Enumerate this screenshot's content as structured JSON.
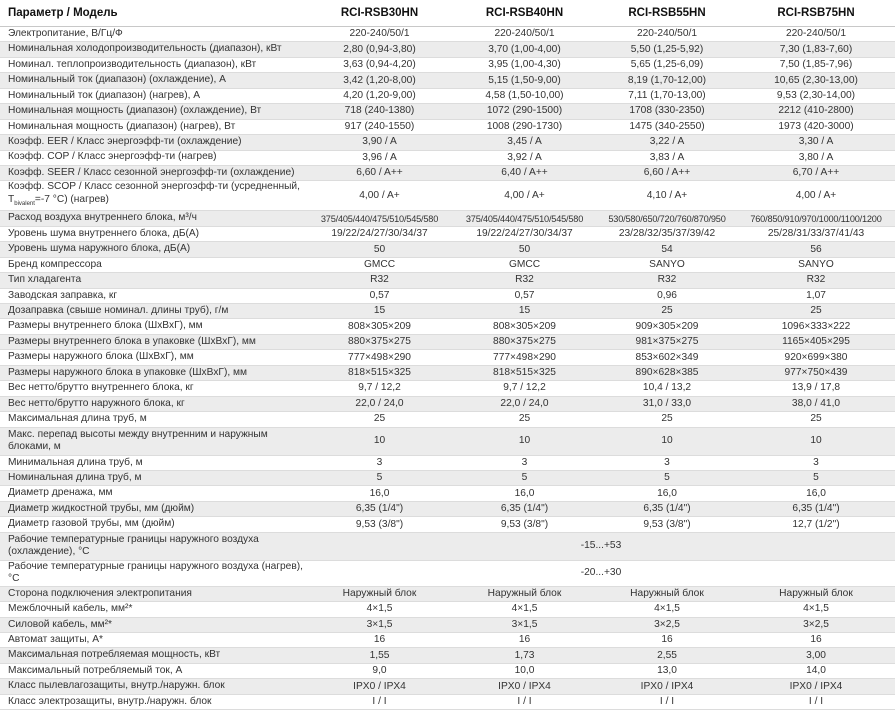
{
  "header": {
    "param": "Параметр / Модель",
    "models": [
      "RCI-RSB30HN",
      "RCI-RSB40HN",
      "RCI-RSB55HN",
      "RCI-RSB75HN"
    ]
  },
  "rows": [
    {
      "label": "Электропитание, В/Гц/Ф",
      "values": [
        "220-240/50/1",
        "220-240/50/1",
        "220-240/50/1",
        "220-240/50/1"
      ]
    },
    {
      "label": "Номинальная холодопроизводительность (диапазон), кВт",
      "values": [
        "2,80 (0,94-3,80)",
        "3,70 (1,00-4,00)",
        "5,50 (1,25-5,92)",
        "7,30 (1,83-7,60)"
      ]
    },
    {
      "label": "Номинал. теплопроизводительность (диапазон), кВт",
      "values": [
        "3,63 (0,94-4,20)",
        "3,95 (1,00-4,30)",
        "5,65 (1,25-6,09)",
        "7,50 (1,85-7,96)"
      ]
    },
    {
      "label": "Номинальный ток (диапазон) (охлаждение), А",
      "values": [
        "3,42 (1,20-8,00)",
        "5,15 (1,50-9,00)",
        "8,19 (1,70-12,00)",
        "10,65 (2,30-13,00)"
      ]
    },
    {
      "label": "Номинальный ток (диапазон) (нагрев), А",
      "values": [
        "4,20 (1,20-9,00)",
        "4,58 (1,50-10,00)",
        "7,11 (1,70-13,00)",
        "9,53 (2,30-14,00)"
      ]
    },
    {
      "label": "Номинальная мощность (диапазон) (охлаждение), Вт",
      "values": [
        "718 (240-1380)",
        "1072 (290-1500)",
        "1708 (330-2350)",
        "2212 (410-2800)"
      ]
    },
    {
      "label": "Номинальная мощность (диапазон) (нагрев), Вт",
      "values": [
        "917 (240-1550)",
        "1008 (290-1730)",
        "1475 (340-2550)",
        "1973 (420-3000)"
      ]
    },
    {
      "label": "Коэфф. EER / Класс энергоэфф-ти (охлаждение)",
      "values": [
        "3,90 / A",
        "3,45 / A",
        "3,22 / A",
        "3,30 / A"
      ]
    },
    {
      "label": "Коэфф. COP / Класс энергоэфф-ти (нагрев)",
      "values": [
        "3,96 / A",
        "3,92 / A",
        "3,83 / A",
        "3,80 / A"
      ]
    },
    {
      "label": "Коэфф. SEER / Класс сезонной энергоэфф-ти (охлаждение)",
      "values": [
        "6,60 / A++",
        "6,40 / A++",
        "6,60 / A++",
        "6,70 / A++"
      ]
    },
    {
      "label": "Коэфф. SCOP / Класс сезонной энергоэфф-ти (усредненный, T",
      "label_sub": "bivalent",
      "label_end": "=-7 °С) (нагрев)",
      "tall": true,
      "values": [
        "4,00 / A+",
        "4,00 / A+",
        "4,10 / A+",
        "4,00 / A+"
      ]
    },
    {
      "label": "Расход воздуха внутреннего блока, м³/ч",
      "narrow": true,
      "values": [
        "375/405/440/475/510/545/580",
        "375/405/440/475/510/545/580",
        "530/580/650/720/760/870/950",
        "760/850/910/970/1000/1100/1200"
      ]
    },
    {
      "label": "Уровень шума внутреннего блока, дБ(А)",
      "values": [
        "19/22/24/27/30/34/37",
        "19/22/24/27/30/34/37",
        "23/28/32/35/37/39/42",
        "25/28/31/33/37/41/43"
      ]
    },
    {
      "label": "Уровень шума наружного блока, дБ(А)",
      "values": [
        "50",
        "50",
        "54",
        "56"
      ]
    },
    {
      "label": "Бренд компрессора",
      "values": [
        "GMCC",
        "GMCC",
        "SANYO",
        "SANYO"
      ]
    },
    {
      "label": "Тип хладагента",
      "values": [
        "R32",
        "R32",
        "R32",
        "R32"
      ]
    },
    {
      "label": "Заводская заправка, кг",
      "values": [
        "0,57",
        "0,57",
        "0,96",
        "1,07"
      ]
    },
    {
      "label": "Дозаправка (свыше номинал. длины труб), г/м",
      "values": [
        "15",
        "15",
        "25",
        "25"
      ]
    },
    {
      "label": "Размеры внутреннего блока (ШхВхГ), мм",
      "values": [
        "808×305×209",
        "808×305×209",
        "909×305×209",
        "1096×333×222"
      ]
    },
    {
      "label": "Размеры внутреннего блока в упаковке (ШхВхГ), мм",
      "values": [
        "880×375×275",
        "880×375×275",
        "981×375×275",
        "1165×405×295"
      ]
    },
    {
      "label": "Размеры наружного блока (ШхВхГ), мм",
      "values": [
        "777×498×290",
        "777×498×290",
        "853×602×349",
        "920×699×380"
      ]
    },
    {
      "label": "Размеры наружного блока в упаковке (ШхВхГ), мм",
      "values": [
        "818×515×325",
        "818×515×325",
        "890×628×385",
        "977×750×439"
      ]
    },
    {
      "label": "Вес нетто/брутто внутреннего блока, кг",
      "values": [
        "9,7 / 12,2",
        "9,7 / 12,2",
        "10,4 / 13,2",
        "13,9 / 17,8"
      ]
    },
    {
      "label": "Вес нетто/брутто наружного блока, кг",
      "values": [
        "22,0 / 24,0",
        "22,0 / 24,0",
        "31,0 / 33,0",
        "38,0 / 41,0"
      ]
    },
    {
      "label": "Максимальная длина труб, м",
      "values": [
        "25",
        "25",
        "25",
        "25"
      ]
    },
    {
      "label": "Макс. перепад высоты между внутренним и наружным блоками, м",
      "tall": true,
      "values": [
        "10",
        "10",
        "10",
        "10"
      ]
    },
    {
      "label": "Минимальная длина труб, м",
      "values": [
        "3",
        "3",
        "3",
        "3"
      ]
    },
    {
      "label": "Номинальная длина труб, м",
      "values": [
        "5",
        "5",
        "5",
        "5"
      ]
    },
    {
      "label": "Диаметр дренажа, мм",
      "values": [
        "16,0",
        "16,0",
        "16,0",
        "16,0"
      ]
    },
    {
      "label": "Диаметр жидкостной трубы, мм (дюйм)",
      "values": [
        "6,35 (1/4\")",
        "6,35 (1/4\")",
        "6,35 (1/4\")",
        "6,35 (1/4\")"
      ]
    },
    {
      "label": "Диаметр газовой трубы, мм (дюйм)",
      "values": [
        "9,53 (3/8\")",
        "9,53 (3/8\")",
        "9,53 (3/8\")",
        "12,7 (1/2\")"
      ]
    },
    {
      "label": "Рабочие температурные границы наружного воздуха (охлаждение), °С",
      "tall": true,
      "span": "-15...+53"
    },
    {
      "label": "Рабочие температурные границы наружного воздуха (нагрев), °С",
      "span": "-20...+30"
    },
    {
      "label": "Сторона подключения электропитания",
      "values": [
        "Наружный блок",
        "Наружный блок",
        "Наружный блок",
        "Наружный блок"
      ]
    },
    {
      "label": "Межблочный кабель, мм²*",
      "values": [
        "4×1,5",
        "4×1,5",
        "4×1,5",
        "4×1,5"
      ]
    },
    {
      "label": "Силовой кабель, мм²*",
      "values": [
        "3×1,5",
        "3×1,5",
        "3×2,5",
        "3×2,5"
      ]
    },
    {
      "label": "Автомат защиты, А*",
      "values": [
        "16",
        "16",
        "16",
        "16"
      ]
    },
    {
      "label": "Максимальная потребляемая мощность, кВт",
      "values": [
        "1,55",
        "1,73",
        "2,55",
        "3,00"
      ]
    },
    {
      "label": "Максимальный потребляемый ток, А",
      "values": [
        "9,0",
        "10,0",
        "13,0",
        "14,0"
      ]
    },
    {
      "label": "Класс пылевлагозащиты, внутр./наружн. блок",
      "values": [
        "IPX0 / IPX4",
        "IPX0 / IPX4",
        "IPX0 / IPX4",
        "IPX0 / IPX4"
      ]
    },
    {
      "label": "Класс электрозащиты, внутр./наружн. блок",
      "values": [
        "I / I",
        "I / I",
        "I / I",
        "I / I"
      ]
    }
  ]
}
